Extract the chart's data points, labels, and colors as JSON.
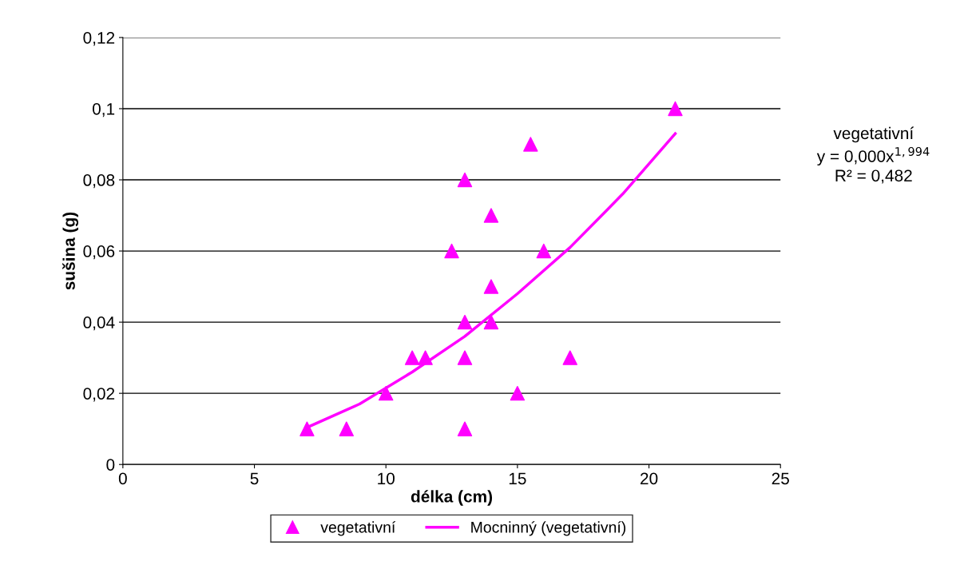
{
  "chart_data": {
    "type": "scatter",
    "xlabel": "délka (cm)",
    "ylabel": "sušina (g)",
    "xlim": [
      0,
      25
    ],
    "xticks": [
      0,
      5,
      10,
      15,
      20,
      25
    ],
    "ylim": [
      0,
      0.12
    ],
    "yticks": [
      {
        "value": 0,
        "label": "0"
      },
      {
        "value": 0.02,
        "label": "0,02"
      },
      {
        "value": 0.04,
        "label": "0,04"
      },
      {
        "value": 0.06,
        "label": "0,06"
      },
      {
        "value": 0.08,
        "label": "0,08"
      },
      {
        "value": 0.1,
        "label": "0,1"
      },
      {
        "value": 0.12,
        "label": "0,12"
      }
    ],
    "grid": "y",
    "legend": "bottom",
    "annotations": [
      "vegetativní\ny = 0,000x$^{1,994}$\nR² = 0,482"
    ],
    "series": [
      {
        "name": "vegetativní",
        "marker": "triangle",
        "color": "#ff00ff",
        "x": [
          7,
          8.5,
          10,
          11,
          11.5,
          12.5,
          13,
          13,
          13,
          13,
          14,
          14,
          14,
          15,
          15.5,
          16,
          17,
          21
        ],
        "values": [
          0.01,
          0.01,
          0.02,
          0.03,
          0.03,
          0.06,
          0.08,
          0.04,
          0.03,
          0.01,
          0.07,
          0.05,
          0.04,
          0.02,
          0.09,
          0.06,
          0.03,
          0.1
        ]
      },
      {
        "name": "Mocninný (vegetativní)",
        "type": "line",
        "marker": "none",
        "line_style": "solid",
        "color": "#ff00ff",
        "x": [
          7,
          9,
          11,
          13,
          15,
          17,
          19,
          21
        ],
        "values": [
          0.0104,
          0.017,
          0.026,
          0.036,
          0.048,
          0.061,
          0.076,
          0.093
        ]
      }
    ]
  }
}
